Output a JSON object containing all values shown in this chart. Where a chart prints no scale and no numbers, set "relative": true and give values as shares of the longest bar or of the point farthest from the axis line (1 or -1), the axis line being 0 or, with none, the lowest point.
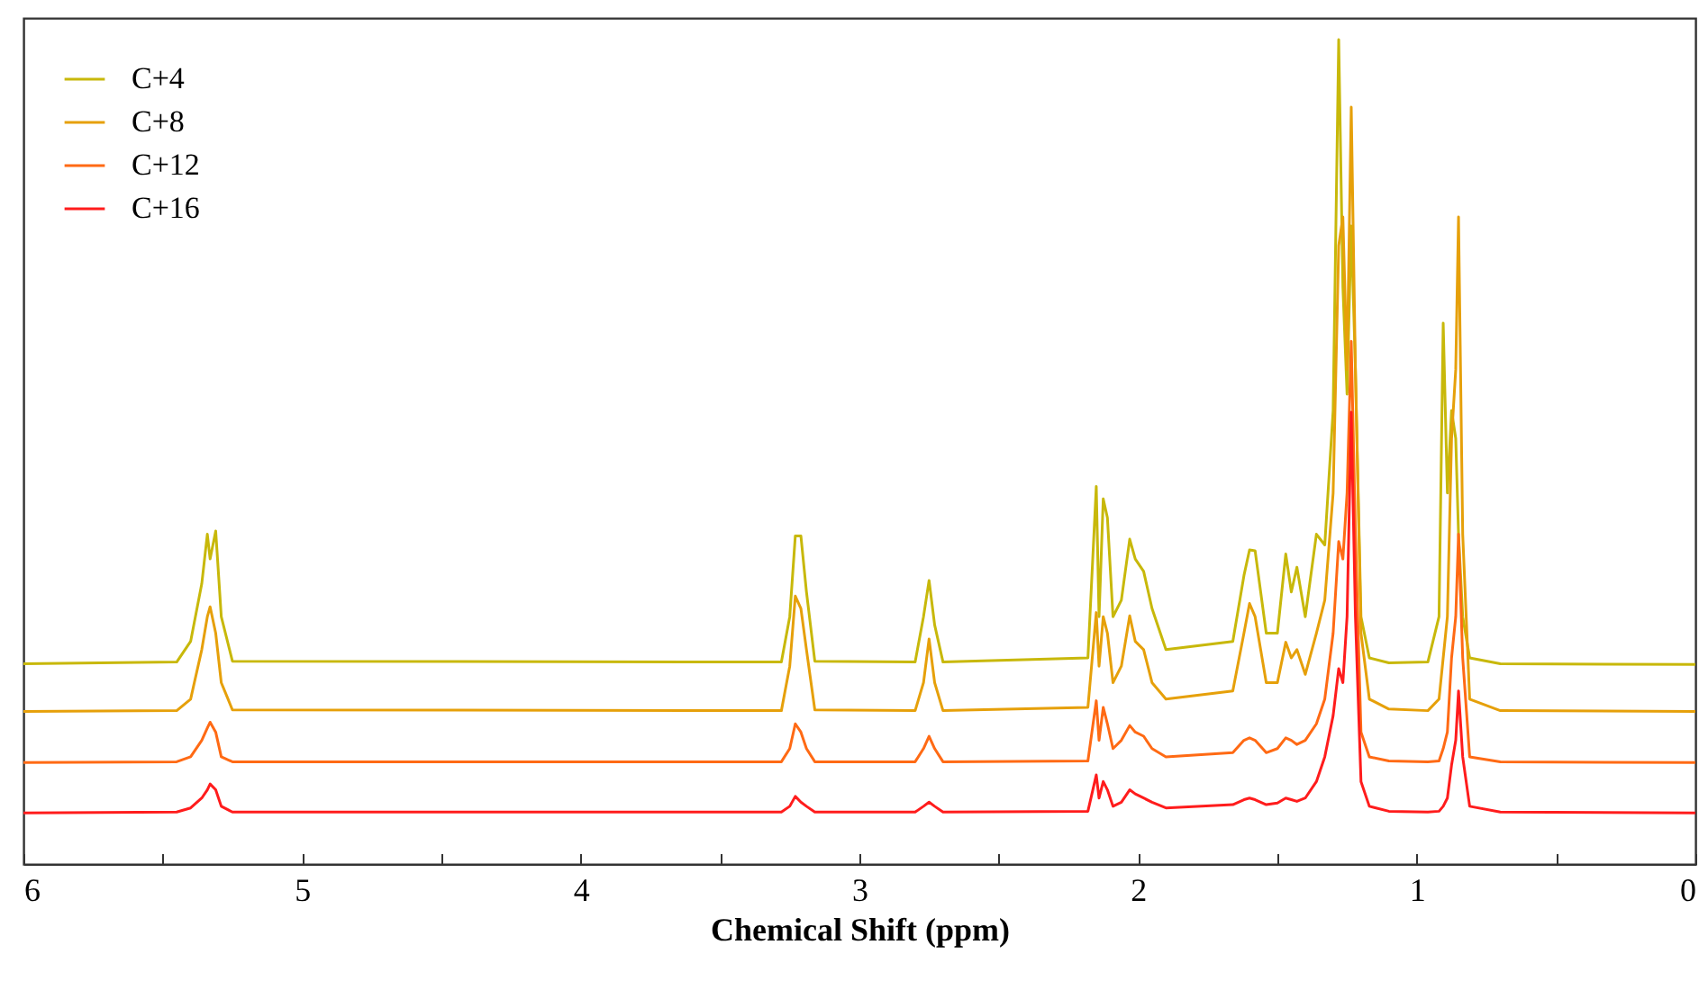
{
  "chart_data": {
    "type": "line",
    "relative": true,
    "xlabel": "Chemical Shift (ppm)",
    "xlim": [
      6,
      0
    ],
    "xticks": [
      6,
      {
        "value": 5.5,
        "label": null
      },
      5,
      {
        "value": 4.5,
        "label": null
      },
      4,
      {
        "value": 3.5,
        "label": null
      },
      3,
      {
        "value": 2.5,
        "label": null
      },
      2,
      {
        "value": 1.5,
        "label": null
      },
      1,
      {
        "value": 0.5,
        "label": null
      },
      0
    ],
    "tick_labels": "x",
    "grid": false,
    "legend": "top left",
    "marker": "none",
    "line_style": "solid",
    "x": [
      6.0,
      5.45,
      5.4,
      5.36,
      5.34,
      5.33,
      5.31,
      5.29,
      5.25,
      3.28,
      3.25,
      3.23,
      3.21,
      3.19,
      3.16,
      2.8,
      2.77,
      2.75,
      2.73,
      2.7,
      2.18,
      2.15,
      2.14,
      2.125,
      2.11,
      2.09,
      2.06,
      2.03,
      2.01,
      1.98,
      1.95,
      1.9,
      1.66,
      1.62,
      1.6,
      1.58,
      1.54,
      1.5,
      1.47,
      1.45,
      1.43,
      1.4,
      1.36,
      1.33,
      1.3,
      1.28,
      1.265,
      1.25,
      1.235,
      1.22,
      1.2,
      1.17,
      1.1,
      0.96,
      0.92,
      0.905,
      0.89,
      0.875,
      0.86,
      0.85,
      0.835,
      0.81,
      0.7,
      0.0
    ],
    "series": [
      {
        "name": "C+4",
        "color": "#c8b80a",
        "values": [
          0.243,
          0.245,
          0.27,
          0.34,
          0.4,
          0.37,
          0.404,
          0.3,
          0.246,
          0.245,
          0.3,
          0.398,
          0.398,
          0.33,
          0.246,
          0.245,
          0.3,
          0.344,
          0.29,
          0.245,
          0.25,
          0.458,
          0.3,
          0.443,
          0.42,
          0.3,
          0.32,
          0.394,
          0.37,
          0.355,
          0.31,
          0.26,
          0.27,
          0.35,
          0.381,
          0.38,
          0.28,
          0.28,
          0.376,
          0.33,
          0.36,
          0.3,
          0.4,
          0.387,
          0.55,
          1.0,
          0.7,
          0.57,
          0.774,
          0.6,
          0.3,
          0.25,
          0.244,
          0.245,
          0.3,
          0.656,
          0.45,
          0.55,
          0.516,
          0.4,
          0.3,
          0.25,
          0.243,
          0.242
        ]
      },
      {
        "name": "C+8",
        "color": "#e6a00a",
        "values": [
          0.185,
          0.186,
          0.2,
          0.26,
          0.3,
          0.312,
          0.28,
          0.22,
          0.187,
          0.186,
          0.24,
          0.325,
          0.31,
          0.26,
          0.187,
          0.186,
          0.22,
          0.273,
          0.22,
          0.186,
          0.19,
          0.305,
          0.24,
          0.3,
          0.28,
          0.22,
          0.24,
          0.301,
          0.27,
          0.26,
          0.22,
          0.2,
          0.21,
          0.28,
          0.316,
          0.3,
          0.22,
          0.22,
          0.269,
          0.25,
          0.26,
          0.23,
          0.28,
          0.32,
          0.45,
          0.75,
          0.785,
          0.6,
          0.918,
          0.6,
          0.28,
          0.2,
          0.188,
          0.186,
          0.2,
          0.25,
          0.3,
          0.516,
          0.6,
          0.785,
          0.4,
          0.2,
          0.186,
          0.185
        ]
      },
      {
        "name": "C+12",
        "color": "#ff6a14",
        "values": [
          0.123,
          0.124,
          0.13,
          0.15,
          0.165,
          0.172,
          0.16,
          0.13,
          0.124,
          0.124,
          0.14,
          0.17,
          0.16,
          0.14,
          0.124,
          0.124,
          0.14,
          0.155,
          0.14,
          0.124,
          0.125,
          0.198,
          0.15,
          0.19,
          0.17,
          0.14,
          0.15,
          0.168,
          0.16,
          0.155,
          0.14,
          0.13,
          0.135,
          0.15,
          0.153,
          0.15,
          0.135,
          0.14,
          0.153,
          0.15,
          0.145,
          0.15,
          0.17,
          0.2,
          0.28,
          0.391,
          0.37,
          0.45,
          0.634,
          0.4,
          0.16,
          0.13,
          0.125,
          0.124,
          0.125,
          0.14,
          0.16,
          0.25,
          0.3,
          0.4,
          0.25,
          0.13,
          0.124,
          0.123
        ]
      },
      {
        "name": "C+16",
        "color": "#ff1c1c",
        "values": [
          0.062,
          0.063,
          0.068,
          0.08,
          0.09,
          0.097,
          0.09,
          0.07,
          0.063,
          0.063,
          0.07,
          0.082,
          0.075,
          0.07,
          0.063,
          0.063,
          0.07,
          0.075,
          0.07,
          0.063,
          0.064,
          0.108,
          0.08,
          0.1,
          0.09,
          0.07,
          0.075,
          0.09,
          0.085,
          0.08,
          0.075,
          0.068,
          0.072,
          0.078,
          0.08,
          0.078,
          0.072,
          0.074,
          0.08,
          0.078,
          0.076,
          0.08,
          0.1,
          0.13,
          0.18,
          0.237,
          0.22,
          0.3,
          0.548,
          0.3,
          0.1,
          0.07,
          0.064,
          0.063,
          0.064,
          0.07,
          0.08,
          0.12,
          0.15,
          0.21,
          0.13,
          0.07,
          0.063,
          0.062
        ]
      }
    ]
  }
}
